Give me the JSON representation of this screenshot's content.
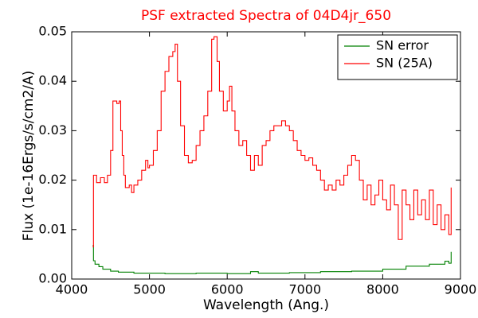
{
  "chart_data": {
    "type": "line",
    "title": "PSF extracted Spectra of 04D4jr_650",
    "xlabel": "Wavelength (Ang.)",
    "ylabel": "Flux (1e-16Ergs/s/cm2/A)",
    "xlim": [
      4000,
      9000
    ],
    "xticks": [
      4000,
      5000,
      6000,
      7000,
      8000,
      9000
    ],
    "ylim": [
      0,
      0.05
    ],
    "yticks": [
      {
        "value": 0,
        "label": "0.00"
      },
      0.01,
      0.02,
      0.03,
      0.04,
      0.05
    ],
    "legend": "upper right",
    "grid": false,
    "series": [
      {
        "name": "SN error",
        "color": "#008000",
        "x": [
          4270,
          4280,
          4300,
          4350,
          4400,
          4500,
          4600,
          4800,
          5200,
          5600,
          6000,
          6300,
          6400,
          6800,
          7200,
          7600,
          8000,
          8300,
          8600,
          8800,
          8850,
          8880
        ],
        "values": [
          0.0068,
          0.0037,
          0.003,
          0.0025,
          0.002,
          0.0016,
          0.0014,
          0.0012,
          0.0011,
          0.0012,
          0.0011,
          0.0015,
          0.0012,
          0.0013,
          0.0015,
          0.0016,
          0.002,
          0.0026,
          0.003,
          0.0036,
          0.0032,
          0.0055
        ]
      },
      {
        "name": "SN (25A)",
        "color": "#ff0000",
        "x": [
          4270,
          4280,
          4320,
          4370,
          4420,
          4460,
          4500,
          4530,
          4580,
          4610,
          4630,
          4650,
          4670,
          4690,
          4740,
          4770,
          4800,
          4850,
          4900,
          4950,
          4980,
          5000,
          5050,
          5100,
          5150,
          5200,
          5250,
          5300,
          5330,
          5360,
          5400,
          5450,
          5500,
          5550,
          5600,
          5650,
          5700,
          5750,
          5800,
          5830,
          5870,
          5900,
          5950,
          6000,
          6030,
          6060,
          6100,
          6150,
          6200,
          6250,
          6300,
          6350,
          6400,
          6450,
          6500,
          6550,
          6600,
          6650,
          6700,
          6750,
          6800,
          6850,
          6900,
          6950,
          7000,
          7050,
          7100,
          7150,
          7200,
          7250,
          7300,
          7350,
          7400,
          7450,
          7500,
          7550,
          7600,
          7650,
          7700,
          7750,
          7800,
          7850,
          7900,
          7950,
          8000,
          8050,
          8100,
          8150,
          8200,
          8250,
          8300,
          8350,
          8400,
          8450,
          8500,
          8550,
          8600,
          8650,
          8700,
          8750,
          8800,
          8850,
          8880
        ],
        "values": [
          0.0065,
          0.021,
          0.0195,
          0.0205,
          0.0195,
          0.021,
          0.026,
          0.036,
          0.0355,
          0.036,
          0.03,
          0.025,
          0.021,
          0.0185,
          0.019,
          0.0175,
          0.019,
          0.02,
          0.022,
          0.024,
          0.0225,
          0.023,
          0.026,
          0.03,
          0.038,
          0.042,
          0.045,
          0.046,
          0.0475,
          0.04,
          0.031,
          0.025,
          0.0235,
          0.024,
          0.027,
          0.03,
          0.033,
          0.038,
          0.0485,
          0.049,
          0.044,
          0.038,
          0.034,
          0.036,
          0.039,
          0.034,
          0.03,
          0.027,
          0.028,
          0.025,
          0.022,
          0.025,
          0.023,
          0.027,
          0.028,
          0.03,
          0.031,
          0.031,
          0.032,
          0.031,
          0.03,
          0.028,
          0.026,
          0.025,
          0.024,
          0.0245,
          0.023,
          0.022,
          0.02,
          0.018,
          0.019,
          0.018,
          0.02,
          0.019,
          0.021,
          0.023,
          0.025,
          0.024,
          0.02,
          0.016,
          0.019,
          0.015,
          0.017,
          0.02,
          0.016,
          0.014,
          0.019,
          0.015,
          0.008,
          0.018,
          0.015,
          0.012,
          0.018,
          0.013,
          0.016,
          0.012,
          0.018,
          0.011,
          0.015,
          0.01,
          0.013,
          0.009,
          0.0185
        ]
      }
    ]
  }
}
